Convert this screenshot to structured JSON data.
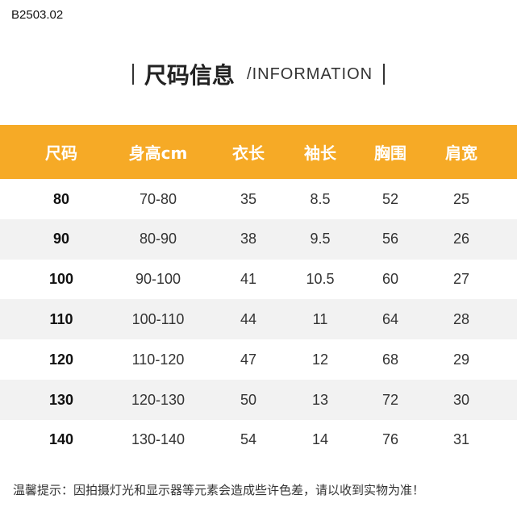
{
  "product_code": "B2503.02",
  "title": {
    "cn": "尺码信息",
    "en": "/INFORMATION"
  },
  "table": {
    "headers": [
      "尺码",
      "身高cm",
      "衣长",
      "袖长",
      "胸围",
      "肩宽"
    ],
    "rows": [
      [
        "80",
        "70-80",
        "35",
        "8.5",
        "52",
        "25"
      ],
      [
        "90",
        "80-90",
        "38",
        "9.5",
        "56",
        "26"
      ],
      [
        "100",
        "90-100",
        "41",
        "10.5",
        "60",
        "27"
      ],
      [
        "110",
        "100-110",
        "44",
        "11",
        "64",
        "28"
      ],
      [
        "120",
        "110-120",
        "47",
        "12",
        "68",
        "29"
      ],
      [
        "130",
        "120-130",
        "50",
        "13",
        "72",
        "30"
      ],
      [
        "140",
        "130-140",
        "54",
        "14",
        "76",
        "31"
      ]
    ]
  },
  "note": "温馨提示：因拍摄灯光和显示器等元素会造成些许色差，请以收到实物为准！",
  "colors": {
    "header_bg": "#f6aa26",
    "alt_row_bg": "#f2f2f2"
  }
}
